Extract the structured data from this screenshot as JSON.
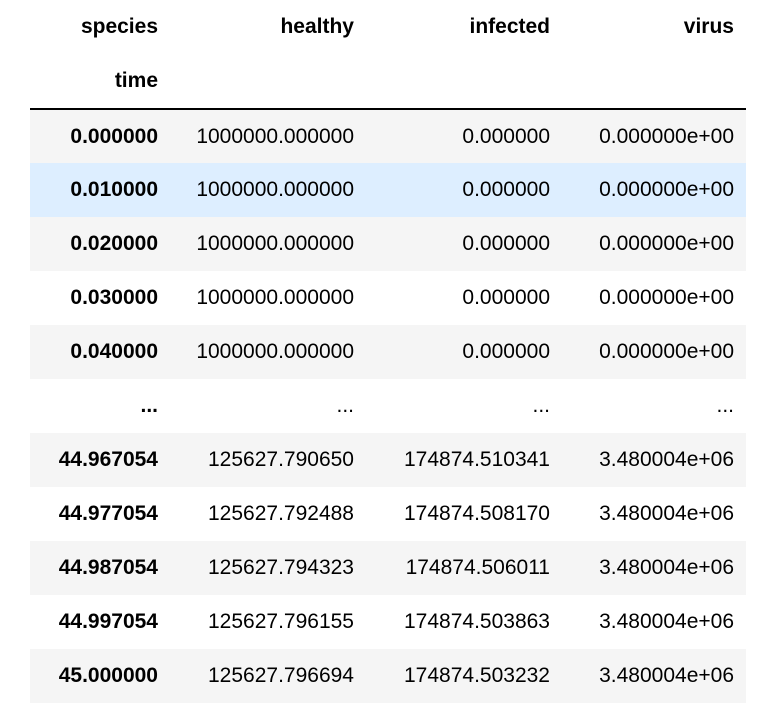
{
  "table": {
    "columns_label": "species",
    "index_label": "time",
    "columns": [
      "healthy",
      "infected",
      "virus"
    ],
    "rows": [
      {
        "index": "0.000000",
        "healthy": "1000000.000000",
        "infected": "0.000000",
        "virus": "0.000000e+00"
      },
      {
        "index": "0.010000",
        "healthy": "1000000.000000",
        "infected": "0.000000",
        "virus": "0.000000e+00"
      },
      {
        "index": "0.020000",
        "healthy": "1000000.000000",
        "infected": "0.000000",
        "virus": "0.000000e+00"
      },
      {
        "index": "0.030000",
        "healthy": "1000000.000000",
        "infected": "0.000000",
        "virus": "0.000000e+00"
      },
      {
        "index": "0.040000",
        "healthy": "1000000.000000",
        "infected": "0.000000",
        "virus": "0.000000e+00"
      },
      {
        "index": "...",
        "healthy": "...",
        "infected": "...",
        "virus": "..."
      },
      {
        "index": "44.967054",
        "healthy": "125627.790650",
        "infected": "174874.510341",
        "virus": "3.480004e+06"
      },
      {
        "index": "44.977054",
        "healthy": "125627.792488",
        "infected": "174874.508170",
        "virus": "3.480004e+06"
      },
      {
        "index": "44.987054",
        "healthy": "125627.794323",
        "infected": "174874.506011",
        "virus": "3.480004e+06"
      },
      {
        "index": "44.997054",
        "healthy": "125627.796155",
        "infected": "174874.503863",
        "virus": "3.480004e+06"
      },
      {
        "index": "45.000000",
        "healthy": "125627.796694",
        "infected": "174874.503232",
        "virus": "3.480004e+06"
      }
    ]
  },
  "highlight_color": "#ddeeff",
  "stripe_color": "#f5f5f5"
}
